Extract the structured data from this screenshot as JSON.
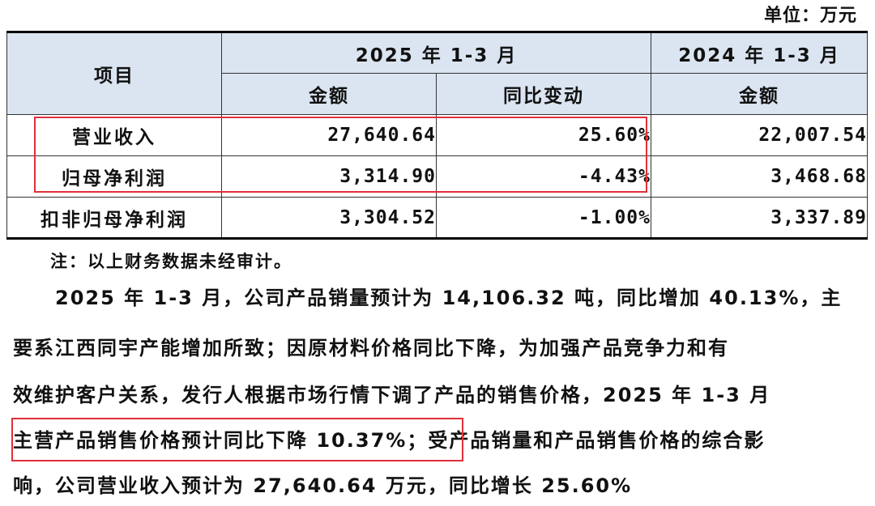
{
  "unit": "单位：万元",
  "table": {
    "header": {
      "item": "项目",
      "period_2025": "2025 年 1-3 月",
      "period_2024": "2024 年 1-3 月",
      "amount": "金额",
      "yoy": "同比变动",
      "amount_2024": "金额"
    },
    "rows": [
      {
        "label": "营业收入",
        "amount_2025": "27,640.64",
        "yoy": "25.60%",
        "amount_2024": "22,007.54"
      },
      {
        "label": "归母净利润",
        "amount_2025": "3,314.90",
        "yoy": "-4.43%",
        "amount_2024": "3,468.68"
      },
      {
        "label": "扣非归母净利润",
        "amount_2025": "3,304.52",
        "yoy": "-1.00%",
        "amount_2024": "3,337.89"
      }
    ]
  },
  "note": "注：以上财务数据未经审计。",
  "paragraph": {
    "line1": "2025 年 1-3 月，公司产品销量预计为 14,106.32 吨，同比增加 40.13%，主",
    "line2": "要系江西同宇产能增加所致；因原材料价格同比下降，为加强产品竞争力和有",
    "line3": "效维护客户关系，发行人根据市场行情下调了产品的销售价格，2025 年 1-3 月",
    "line4_highlight": "主营产品销售价格预计同比下降 10.37%；",
    "line4_rest": "受产品销量和产品销售价格的综合影",
    "line5": "响，公司营业收入预计为 27,640.64 万元，同比增长 25.60%"
  },
  "colors": {
    "header_bg": "#dbe5f1",
    "highlight_border": "#e0303a"
  }
}
